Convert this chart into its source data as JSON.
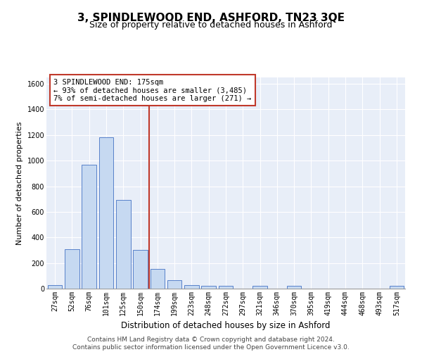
{
  "title": "3, SPINDLEWOOD END, ASHFORD, TN23 3QE",
  "subtitle": "Size of property relative to detached houses in Ashford",
  "xlabel": "Distribution of detached houses by size in Ashford",
  "ylabel": "Number of detached properties",
  "categories": [
    "27sqm",
    "52sqm",
    "76sqm",
    "101sqm",
    "125sqm",
    "150sqm",
    "174sqm",
    "199sqm",
    "223sqm",
    "248sqm",
    "272sqm",
    "297sqm",
    "321sqm",
    "346sqm",
    "370sqm",
    "395sqm",
    "419sqm",
    "444sqm",
    "468sqm",
    "493sqm",
    "517sqm"
  ],
  "values": [
    30,
    310,
    970,
    1185,
    695,
    300,
    155,
    65,
    30,
    20,
    20,
    0,
    20,
    0,
    20,
    0,
    0,
    0,
    0,
    0,
    20
  ],
  "bar_color": "#c6d9f1",
  "bar_edge_color": "#4472c4",
  "vline_color": "#c0392b",
  "annotation_text": "3 SPINDLEWOOD END: 175sqm\n← 93% of detached houses are smaller (3,485)\n7% of semi-detached houses are larger (271) →",
  "annotation_box_color": "#ffffff",
  "annotation_box_edge_color": "#c0392b",
  "ylim": [
    0,
    1650
  ],
  "yticks": [
    0,
    200,
    400,
    600,
    800,
    1000,
    1200,
    1400,
    1600
  ],
  "background_color": "#e8eef8",
  "footer_line1": "Contains HM Land Registry data © Crown copyright and database right 2024.",
  "footer_line2": "Contains public sector information licensed under the Open Government Licence v3.0.",
  "title_fontsize": 11,
  "subtitle_fontsize": 9,
  "xlabel_fontsize": 8.5,
  "ylabel_fontsize": 8,
  "tick_fontsize": 7,
  "annotation_fontsize": 7.5,
  "footer_fontsize": 6.5
}
